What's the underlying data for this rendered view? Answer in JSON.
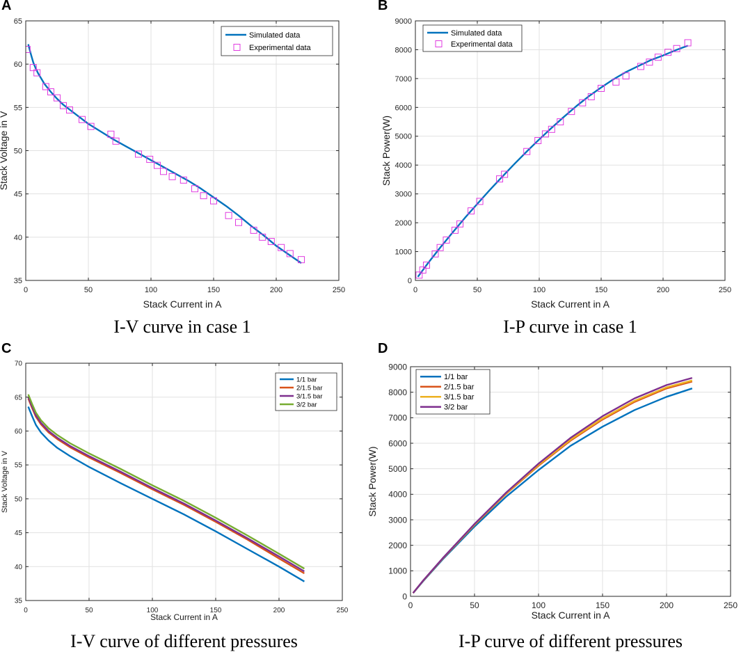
{
  "chart_data": [
    {
      "panel": "A",
      "type": "line",
      "caption": "I-V curve in case 1",
      "xlabel": "Stack Current in A",
      "ylabel": "Stack Voltage in V",
      "xlim": [
        0,
        250
      ],
      "ylim": [
        35,
        65
      ],
      "xticks": [
        0,
        50,
        100,
        150,
        200,
        250
      ],
      "yticks": [
        35,
        40,
        45,
        50,
        55,
        60,
        65
      ],
      "series": [
        {
          "name": "Simulated data",
          "style": "line",
          "color": "#0072BD",
          "x": [
            2,
            4,
            6,
            8,
            10,
            15,
            20,
            25,
            30,
            40,
            50,
            60,
            70,
            80,
            90,
            100,
            110,
            120,
            130,
            140,
            150,
            160,
            170,
            180,
            190,
            200,
            210,
            220
          ],
          "y": [
            62.3,
            61.2,
            60.2,
            59.5,
            58.9,
            57.7,
            56.8,
            56.0,
            55.3,
            54.2,
            53.1,
            52.2,
            51.3,
            50.5,
            49.7,
            48.9,
            48.1,
            47.3,
            46.5,
            45.6,
            44.6,
            43.6,
            42.5,
            41.3,
            40.2,
            39.0,
            38.0,
            37.0
          ]
        },
        {
          "name": "Experimental data",
          "style": "marker",
          "color": "#E03BE0",
          "x": [
            1,
            6,
            9,
            16,
            20,
            25,
            30,
            35,
            45,
            52,
            68,
            72,
            90,
            99,
            105,
            110,
            117,
            126,
            135,
            142,
            150,
            162,
            170,
            182,
            189,
            196,
            204,
            211,
            220
          ],
          "y": [
            61.7,
            59.6,
            59.0,
            57.4,
            56.8,
            56.1,
            55.2,
            54.7,
            53.6,
            52.8,
            51.9,
            51.1,
            49.6,
            49.0,
            48.3,
            47.6,
            47.0,
            46.6,
            45.6,
            44.8,
            44.2,
            42.5,
            41.7,
            40.8,
            40.0,
            39.5,
            38.8,
            38.1,
            37.4
          ]
        }
      ],
      "legend": "top-right"
    },
    {
      "panel": "B",
      "type": "line",
      "caption": "I-P curve in case 1",
      "xlabel": "Stack Current in A",
      "ylabel": "Stack Power(W)",
      "xlim": [
        0,
        250
      ],
      "ylim": [
        0,
        9000
      ],
      "xticks": [
        0,
        50,
        100,
        150,
        200,
        250
      ],
      "yticks": [
        0,
        1000,
        2000,
        3000,
        4000,
        5000,
        6000,
        7000,
        8000,
        9000
      ],
      "series": [
        {
          "name": "Simulated data",
          "style": "line",
          "color": "#0072BD",
          "x": [
            2,
            10,
            20,
            30,
            40,
            50,
            60,
            70,
            80,
            90,
            100,
            110,
            120,
            130,
            140,
            150,
            160,
            170,
            180,
            190,
            200,
            210,
            220
          ],
          "y": [
            125,
            589,
            1136,
            1659,
            2168,
            2655,
            3132,
            3591,
            4040,
            4473,
            4890,
            5291,
            5676,
            6045,
            6384,
            6690,
            6976,
            7225,
            7434,
            7638,
            7800,
            7980,
            8140
          ]
        },
        {
          "name": "Experimental data",
          "style": "marker",
          "color": "#E03BE0",
          "x": [
            3,
            6,
            9,
            16,
            20,
            25,
            32,
            36,
            45,
            52,
            68,
            72,
            90,
            99,
            105,
            110,
            117,
            126,
            135,
            142,
            150,
            162,
            170,
            182,
            189,
            196,
            204,
            211,
            220
          ],
          "y": [
            185,
            360,
            530,
            920,
            1140,
            1400,
            1740,
            1960,
            2410,
            2740,
            3520,
            3680,
            4470,
            4850,
            5080,
            5240,
            5500,
            5860,
            6160,
            6370,
            6660,
            6880,
            7090,
            7420,
            7570,
            7740,
            7910,
            8040,
            8240
          ]
        }
      ],
      "legend": "top-left"
    },
    {
      "panel": "C",
      "type": "line",
      "caption": "I-V curve of different pressures",
      "xlabel": "Stack Current in A",
      "ylabel": "Stack Voltage in V",
      "xlim": [
        0,
        250
      ],
      "ylim": [
        35,
        70
      ],
      "xticks": [
        0,
        50,
        100,
        150,
        200,
        250
      ],
      "yticks": [
        35,
        40,
        45,
        50,
        55,
        60,
        65,
        70
      ],
      "x": [
        2,
        5,
        8,
        12,
        18,
        25,
        35,
        50,
        75,
        100,
        125,
        150,
        175,
        200,
        220
      ],
      "series": [
        {
          "name": "1/1 bar",
          "color": "#0072BD",
          "y": [
            63.6,
            62.2,
            60.9,
            59.8,
            58.6,
            57.5,
            56.3,
            54.7,
            52.3,
            50.0,
            47.7,
            45.2,
            42.6,
            40.0,
            37.8
          ]
        },
        {
          "name": "2/1.5 bar",
          "color": "#D95319",
          "y": [
            64.8,
            63.4,
            62.1,
            61.0,
            59.8,
            58.8,
            57.6,
            56.1,
            53.8,
            51.4,
            49.1,
            46.6,
            44.0,
            41.2,
            39.0
          ]
        },
        {
          "name": "3/1.5 bar",
          "color": "#7E2F8E",
          "y": [
            65.0,
            63.6,
            62.3,
            61.2,
            60.0,
            59.0,
            57.8,
            56.3,
            54.0,
            51.6,
            49.3,
            46.8,
            44.2,
            41.5,
            39.3
          ]
        },
        {
          "name": "3/2 bar",
          "color": "#77AC30",
          "y": [
            65.4,
            64.0,
            62.7,
            61.6,
            60.4,
            59.4,
            58.2,
            56.7,
            54.4,
            52.0,
            49.7,
            47.2,
            44.6,
            41.9,
            39.7
          ]
        }
      ],
      "legend": "top-right"
    },
    {
      "panel": "D",
      "type": "line",
      "caption": "I-P curve of different pressures",
      "xlabel": "Stack Current in A",
      "ylabel": "Stack Power(W)",
      "xlim": [
        0,
        250
      ],
      "ylim": [
        0,
        9000
      ],
      "xticks": [
        0,
        50,
        100,
        150,
        200,
        250
      ],
      "yticks": [
        0,
        1000,
        2000,
        3000,
        4000,
        5000,
        6000,
        7000,
        8000,
        9000
      ],
      "x": [
        2,
        10,
        25,
        50,
        75,
        100,
        125,
        150,
        175,
        200,
        220
      ],
      "series": [
        {
          "name": "1/1 bar",
          "color": "#0072BD",
          "y": [
            127,
            600,
            1440,
            2735,
            3920,
            4950,
            5900,
            6650,
            7300,
            7820,
            8150
          ]
        },
        {
          "name": "2/1.5 bar",
          "color": "#D95319",
          "y": [
            130,
            620,
            1470,
            2800,
            4030,
            5120,
            6100,
            6930,
            7620,
            8150,
            8420
          ]
        },
        {
          "name": "3/1.5 bar",
          "color": "#EDB120",
          "y": [
            130,
            622,
            1475,
            2810,
            4050,
            5150,
            6140,
            6970,
            7660,
            8190,
            8460
          ]
        },
        {
          "name": "3/2 bar",
          "color": "#7E2F8E",
          "y": [
            131,
            627,
            1485,
            2835,
            4080,
            5200,
            6210,
            7060,
            7760,
            8280,
            8560
          ]
        }
      ],
      "legend": "top-left"
    }
  ]
}
